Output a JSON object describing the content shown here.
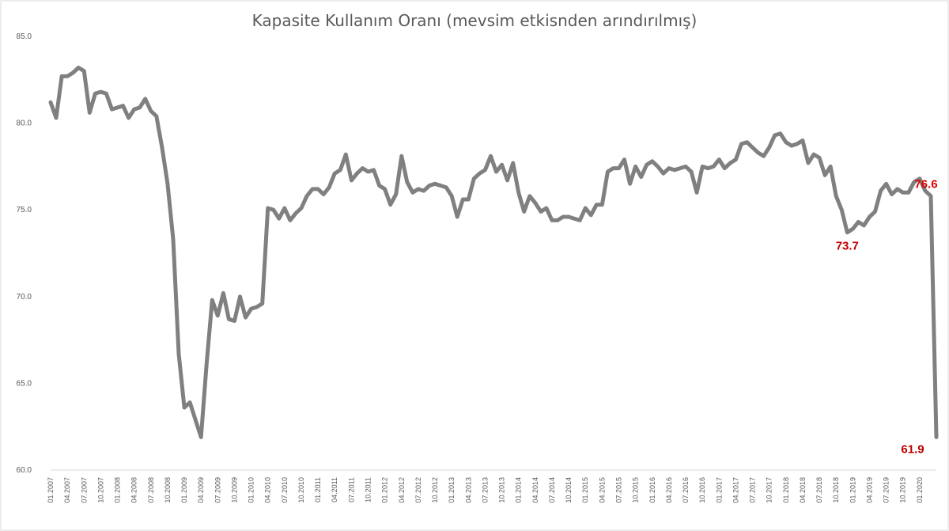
{
  "chart_data": {
    "type": "line",
    "title": "Kapasite Kullanım Oranı (mevsim etkisnden arındırılmış)",
    "xlabel": "",
    "ylabel": "",
    "ylim": [
      60,
      85
    ],
    "y_ticks": [
      "85.0",
      "80.0",
      "75.0",
      "70.0",
      "65.0",
      "60.0"
    ],
    "grid": false,
    "x_tick_labels": [
      "01.2007",
      "04.2007",
      "07.2007",
      "10.2007",
      "01.2008",
      "04.2008",
      "07.2008",
      "10.2008",
      "01.2009",
      "04.2009",
      "07.2009",
      "10.2009",
      "01.2010",
      "04.2010",
      "07.2010",
      "10.2010",
      "01.2011",
      "04.2011",
      "07.2011",
      "10.2011",
      "01.2012",
      "04.2012",
      "07.2012",
      "10.2012",
      "01.2013",
      "04.2013",
      "07.2013",
      "10.2013",
      "01.2014",
      "04.2014",
      "07.2014",
      "10.2014",
      "01.2015",
      "04.2015",
      "07.2015",
      "10.2015",
      "01.2016",
      "04.2016",
      "07.2016",
      "10.2016",
      "01.2017",
      "04.2017",
      "07.2017",
      "10.2017",
      "01.2018",
      "04.2018",
      "07.2018",
      "10.2018",
      "01.2019",
      "04.2019",
      "07.2019",
      "10.2019",
      "01.2020"
    ],
    "series": [
      {
        "color": "#808080",
        "values": [
          81.2,
          80.3,
          82.7,
          82.7,
          82.9,
          83.2,
          83.0,
          80.6,
          81.7,
          81.8,
          81.7,
          80.8,
          80.9,
          81.0,
          80.3,
          80.8,
          80.9,
          81.4,
          80.7,
          80.4,
          78.6,
          76.5,
          73.3,
          66.7,
          63.6,
          63.9,
          62.9,
          61.9,
          66.1,
          69.8,
          68.9,
          70.2,
          68.7,
          68.6,
          70.0,
          68.8,
          69.3,
          69.4,
          69.6,
          75.1,
          75.0,
          74.5,
          75.1,
          74.4,
          74.8,
          75.1,
          75.8,
          76.2,
          76.2,
          75.9,
          76.3,
          77.1,
          77.3,
          78.2,
          76.7,
          77.1,
          77.4,
          77.2,
          77.3,
          76.4,
          76.2,
          75.3,
          75.9,
          78.1,
          76.6,
          76.0,
          76.2,
          76.1,
          76.4,
          76.5,
          76.4,
          76.3,
          75.8,
          74.6,
          75.6,
          75.6,
          76.8,
          77.1,
          77.3,
          78.1,
          77.2,
          77.6,
          76.7,
          77.7,
          76.0,
          74.9,
          75.8,
          75.4,
          74.9,
          75.1,
          74.4,
          74.4,
          74.6,
          74.6,
          74.5,
          74.4,
          75.1,
          74.7,
          75.3,
          75.3,
          77.2,
          77.4,
          77.4,
          77.9,
          76.5,
          77.5,
          76.9,
          77.6,
          77.8,
          77.5,
          77.1,
          77.4,
          77.3,
          77.4,
          77.5,
          77.2,
          76.0,
          77.5,
          77.4,
          77.5,
          77.9,
          77.4,
          77.7,
          77.9,
          78.8,
          78.9,
          78.6,
          78.3,
          78.1,
          78.6,
          79.3,
          79.4,
          78.9,
          78.7,
          78.8,
          79.0,
          77.7,
          78.2,
          78.0,
          77.0,
          77.5,
          75.8,
          75.0,
          73.7,
          73.9,
          74.3,
          74.1,
          74.6,
          74.9,
          76.1,
          76.5,
          75.9,
          76.2,
          76.0,
          76.0,
          76.6,
          76.8,
          76.1,
          75.8,
          61.9
        ]
      }
    ],
    "annotations": [
      {
        "text": "76.6",
        "color": "#e00000"
      },
      {
        "text": "73.7",
        "color": "#c00000"
      },
      {
        "text": "61.9",
        "color": "#c00000"
      }
    ]
  }
}
